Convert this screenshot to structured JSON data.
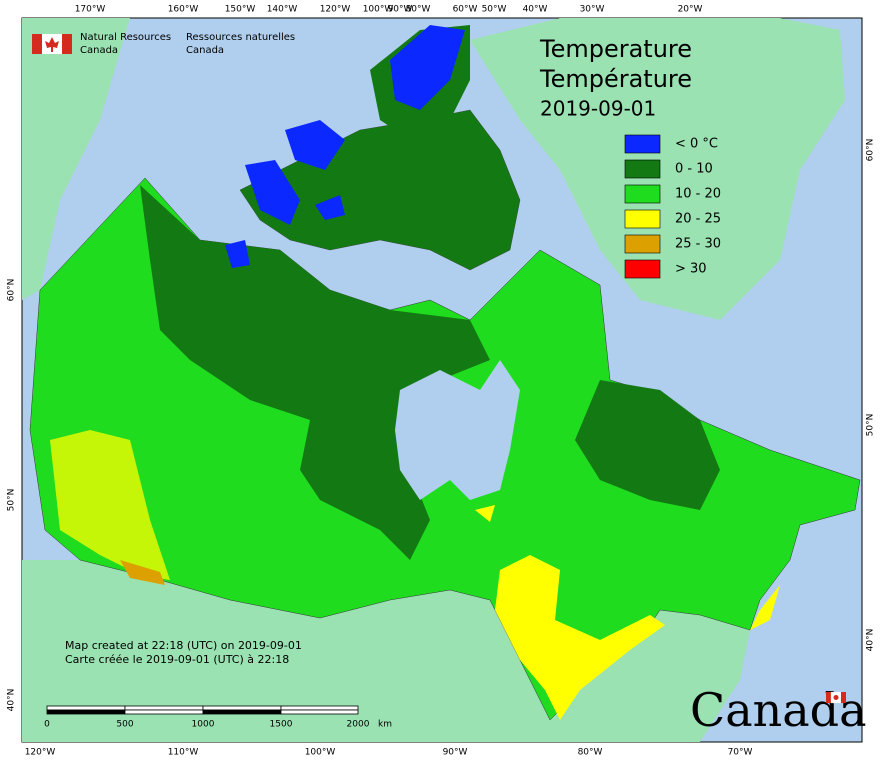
{
  "header": {
    "agency_en": [
      "Natural Resources",
      "Canada"
    ],
    "agency_fr": [
      "Ressources naturelles",
      "Canada"
    ]
  },
  "title": [
    "Temperature",
    "Température",
    "2019-09-01"
  ],
  "legend": [
    {
      "label": "< 0 °C",
      "color": "#0a28ff"
    },
    {
      "label": "0 - 10",
      "color": "#137a13"
    },
    {
      "label": "10 - 20",
      "color": "#1fdc1f"
    },
    {
      "label": "20 - 25",
      "color": "#ffff00"
    },
    {
      "label": "25 - 30",
      "color": "#dca000"
    },
    {
      "label": "> 30",
      "color": "#ff0000"
    }
  ],
  "graticule": {
    "top": [
      "170°W",
      "160°W",
      "150°W",
      "140°W",
      "120°W",
      "100°W",
      "90°W",
      "80°W",
      "60°W",
      "50°W",
      "40°W",
      "30°W",
      "20°W"
    ],
    "bottom": [
      "120°W",
      "110°W",
      "100°W",
      "90°W",
      "80°W",
      "70°W"
    ],
    "left": [
      "60°N",
      "50°N",
      "40°N"
    ],
    "right": [
      "60°N",
      "50°N",
      "40°N"
    ]
  },
  "notes": [
    "Map created at 22:18 (UTC) on 2019-09-01",
    "Carte créée le 2019-09-01 (UTC) à 22:18"
  ],
  "scale_bar": {
    "labels": [
      "0",
      "500",
      "1000",
      "1500",
      "2000"
    ],
    "unit": "km"
  },
  "wordmark": "Canada"
}
